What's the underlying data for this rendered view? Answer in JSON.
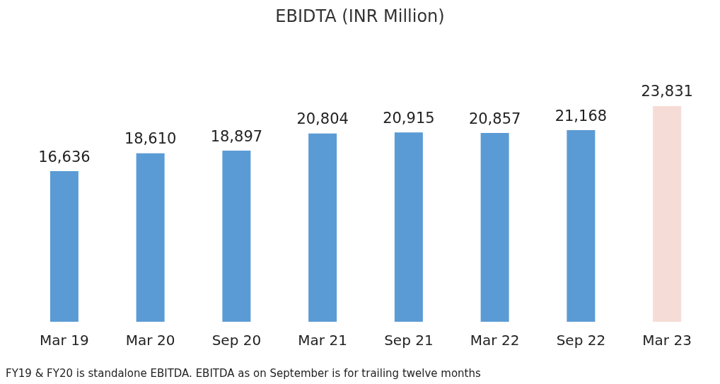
{
  "chart_data": {
    "type": "bar",
    "title": "EBIDTA (INR Million)",
    "categories": [
      "Mar 19",
      "Mar 20",
      "Sep 20",
      "Mar 21",
      "Sep 21",
      "Mar 22",
      "Sep 22",
      "Mar 23"
    ],
    "values": [
      16636,
      18610,
      18897,
      20804,
      20915,
      20857,
      21168,
      23831
    ],
    "value_labels": [
      "16,636",
      "18,610",
      "18,897",
      "20,804",
      "20,915",
      "20,857",
      "21,168",
      "23,831"
    ],
    "colors": [
      "#5b9bd5",
      "#5b9bd5",
      "#5b9bd5",
      "#5b9bd5",
      "#5b9bd5",
      "#5b9bd5",
      "#5b9bd5",
      "#f6dcd6"
    ],
    "annotations": [
      "FY19 & FY20 is standalone EBITDA. EBITDA as on September is for trailing twelve months"
    ]
  }
}
